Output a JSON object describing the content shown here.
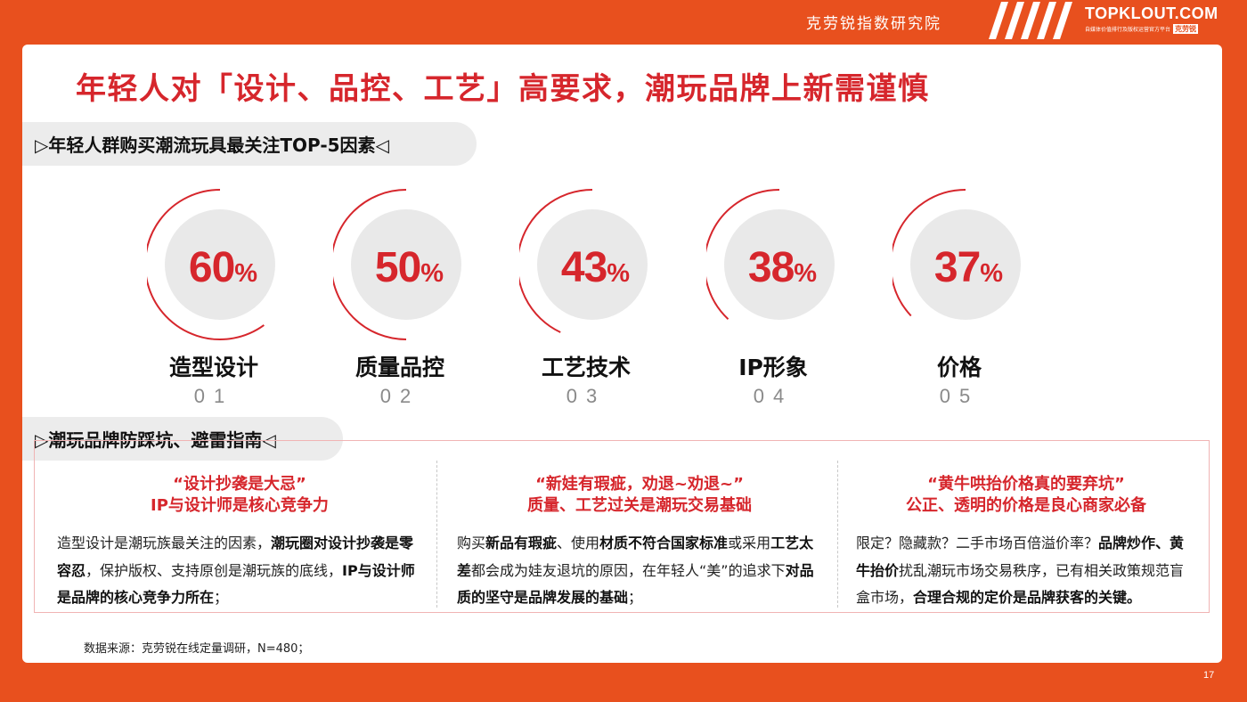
{
  "header": {
    "institute": "克劳锐指数研究院",
    "brand_name": "TOPKLOUT.COM",
    "brand_sub_left": "自媒体价值排行及版权运营官方平台",
    "brand_sub_right": "克劳锐"
  },
  "title": "年轻人对「设计、品控、工艺」高要求，潮玩品牌上新需谨慎",
  "section1": {
    "label": "▷年轻人群购买潮流玩具最关注TOP-5因素◁"
  },
  "factors": [
    {
      "value": "60",
      "unit": "%",
      "name": "造型设计",
      "num": "01",
      "percent": 60
    },
    {
      "value": "50",
      "unit": "%",
      "name": "质量品控",
      "num": "02",
      "percent": 50
    },
    {
      "value": "43",
      "unit": "%",
      "name": "工艺技术",
      "num": "03",
      "percent": 43
    },
    {
      "value": "38",
      "unit": "%",
      "name": "IP形象",
      "num": "04",
      "percent": 38
    },
    {
      "value": "37",
      "unit": "%",
      "name": "价格",
      "num": "05",
      "percent": 37
    }
  ],
  "section2": {
    "label": "▷潮玩品牌防踩坑、避雷指南◁"
  },
  "tips": [
    {
      "head1": "“设计抄袭是大忌”",
      "head2": "IP与设计师是核心竞争力",
      "body": [
        {
          "t": "造型设计是潮玩族最关注的因素，",
          "b": false
        },
        {
          "t": "潮玩圈对设计抄袭是零容忍",
          "b": true
        },
        {
          "t": "，保护版权、支持原创是潮玩族的底线，",
          "b": false
        },
        {
          "t": "IP与设计师是品牌的核心竞争力所在",
          "b": true
        },
        {
          "t": "；",
          "b": false
        }
      ]
    },
    {
      "head1": "“新娃有瑕疵，劝退~劝退~”",
      "head2": "质量、工艺过关是潮玩交易基础",
      "body": [
        {
          "t": "购买",
          "b": false
        },
        {
          "t": "新品有瑕疵",
          "b": true
        },
        {
          "t": "、使用",
          "b": false
        },
        {
          "t": "材质不符合国家标准",
          "b": true
        },
        {
          "t": "或采用",
          "b": false
        },
        {
          "t": "工艺太差",
          "b": true
        },
        {
          "t": "都会成为娃友退坑的原因，在年轻人“美”的追求下",
          "b": false
        },
        {
          "t": "对品质的坚守是品牌发展的基础",
          "b": true
        },
        {
          "t": "；",
          "b": false
        }
      ]
    },
    {
      "head1": "“黄牛哄抬价格真的要弃坑”",
      "head2": "公正、透明的价格是良心商家必备",
      "body": [
        {
          "t": "限定？隐藏款？二手市场百倍溢价率？",
          "b": false
        },
        {
          "t": "品牌炒作、黄牛抬价",
          "b": true
        },
        {
          "t": "扰乱潮玩市场交易秩序，已有相关政策规范盲盒市场，",
          "b": false
        },
        {
          "t": "合理合规的定价是品牌获客的关键。",
          "b": true
        }
      ]
    }
  ],
  "source": "数据来源：克劳锐在线定量调研，N=480；",
  "page_number": "17",
  "colors": {
    "accent": "#d6262c",
    "background": "#e8501e",
    "pill": "#ececec",
    "circle": "#e9e9e9"
  }
}
